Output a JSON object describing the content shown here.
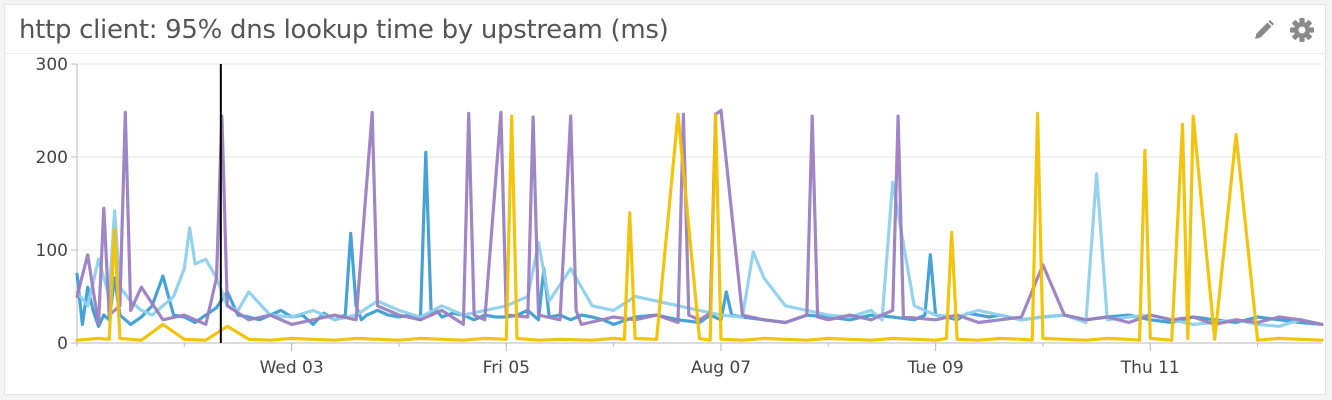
{
  "widget": {
    "title": "http client: 95% dns lookup time by upstream (ms)",
    "edit_icon": "pencil-icon",
    "settings_icon": "gear-icon"
  },
  "colors": {
    "series": [
      "#3d9ed4",
      "#8fd0ec",
      "#9b7fc1",
      "#f2c100"
    ],
    "axis": "#b9b9b9",
    "grid": "#e6e6e6",
    "cursor": "#000000",
    "text": "#444444"
  },
  "chart_data": {
    "type": "line",
    "title": "http client: 95% dns lookup time by upstream (ms)",
    "xlabel": "",
    "ylabel": "",
    "ylim": [
      0,
      300
    ],
    "yticks": [
      0,
      100,
      200,
      300
    ],
    "xlim": [
      0,
      11.6
    ],
    "xunit": "days from start of displayed window (axis shows dates)",
    "xticks": [
      {
        "x": 2.0,
        "label": "Wed 03"
      },
      {
        "x": 4.0,
        "label": "Fri 05"
      },
      {
        "x": 6.0,
        "label": "Aug 07"
      },
      {
        "x": 8.0,
        "label": "Tue 09"
      },
      {
        "x": 10.0,
        "label": "Thu 11"
      }
    ],
    "grid": true,
    "cursor_x": 1.34,
    "series": [
      {
        "color": "#3d9ed4",
        "x": [
          0.0,
          0.05,
          0.1,
          0.15,
          0.2,
          0.25,
          0.3,
          0.35,
          0.4,
          0.5,
          0.6,
          0.7,
          0.8,
          0.9,
          1.0,
          1.1,
          1.2,
          1.3,
          1.4,
          1.5,
          1.6,
          1.7,
          1.8,
          1.9,
          2.0,
          2.1,
          2.2,
          2.3,
          2.4,
          2.5,
          2.55,
          2.6,
          2.65,
          2.7,
          2.8,
          2.9,
          3.0,
          3.1,
          3.2,
          3.25,
          3.3,
          3.35,
          3.4,
          3.5,
          3.6,
          3.7,
          3.8,
          3.9,
          4.0,
          4.1,
          4.2,
          4.3,
          4.35,
          4.4,
          4.5,
          4.6,
          4.7,
          4.8,
          4.9,
          5.0,
          5.2,
          5.4,
          5.6,
          5.8,
          5.9,
          6.0,
          6.05,
          6.1,
          6.2,
          6.4,
          6.6,
          6.8,
          7.0,
          7.2,
          7.4,
          7.6,
          7.8,
          7.9,
          7.95,
          8.0,
          8.1,
          8.2,
          8.3,
          8.4,
          8.5,
          8.6,
          8.8,
          9.0,
          9.2,
          9.4,
          9.6,
          9.8,
          10.0,
          10.2,
          10.4,
          10.6,
          10.8,
          11.0,
          11.2,
          11.4,
          11.6
        ],
        "y": [
          74,
          20,
          60,
          35,
          18,
          30,
          25,
          70,
          30,
          20,
          28,
          40,
          72,
          30,
          28,
          22,
          30,
          38,
          55,
          30,
          28,
          25,
          30,
          35,
          28,
          30,
          20,
          32,
          25,
          30,
          118,
          40,
          25,
          30,
          35,
          30,
          28,
          30,
          25,
          205,
          30,
          35,
          28,
          32,
          30,
          25,
          30,
          28,
          28,
          30,
          35,
          25,
          80,
          28,
          30,
          25,
          30,
          28,
          25,
          20,
          28,
          30,
          25,
          22,
          30,
          25,
          55,
          30,
          28,
          25,
          22,
          30,
          28,
          25,
          30,
          28,
          25,
          30,
          95,
          30,
          28,
          25,
          32,
          30,
          28,
          30,
          25,
          28,
          30,
          25,
          28,
          30,
          25,
          22,
          28,
          25,
          22,
          28,
          25,
          22,
          20
        ]
      },
      {
        "color": "#8fd0ec",
        "x": [
          0.0,
          0.1,
          0.2,
          0.3,
          0.35,
          0.4,
          0.5,
          0.6,
          0.7,
          0.8,
          0.9,
          1.0,
          1.05,
          1.1,
          1.2,
          1.3,
          1.4,
          1.5,
          1.6,
          1.8,
          2.0,
          2.2,
          2.4,
          2.6,
          2.8,
          3.0,
          3.2,
          3.4,
          3.6,
          3.8,
          4.0,
          4.2,
          4.3,
          4.4,
          4.6,
          4.8,
          5.0,
          5.2,
          5.4,
          5.6,
          5.8,
          6.0,
          6.2,
          6.3,
          6.4,
          6.6,
          6.8,
          7.0,
          7.2,
          7.4,
          7.5,
          7.6,
          7.8,
          8.0,
          8.2,
          8.4,
          8.6,
          8.8,
          9.0,
          9.2,
          9.4,
          9.5,
          9.6,
          9.8,
          10.0,
          10.2,
          10.4,
          10.6,
          10.8,
          11.0,
          11.2,
          11.4,
          11.6
        ],
        "y": [
          55,
          40,
          90,
          50,
          142,
          60,
          45,
          35,
          30,
          40,
          50,
          80,
          124,
          85,
          90,
          70,
          40,
          35,
          55,
          30,
          28,
          35,
          25,
          30,
          45,
          35,
          28,
          40,
          30,
          35,
          40,
          50,
          108,
          45,
          80,
          40,
          35,
          50,
          45,
          40,
          35,
          30,
          28,
          98,
          70,
          40,
          35,
          30,
          28,
          35,
          25,
          173,
          40,
          30,
          28,
          35,
          30,
          25,
          28,
          30,
          22,
          182,
          25,
          28,
          30,
          25,
          20,
          22,
          25,
          20,
          18,
          25,
          20
        ]
      },
      {
        "color": "#9b7fc1",
        "x": [
          0.0,
          0.1,
          0.2,
          0.25,
          0.3,
          0.4,
          0.45,
          0.5,
          0.6,
          0.8,
          1.0,
          1.2,
          1.3,
          1.35,
          1.4,
          1.6,
          1.8,
          2.0,
          2.2,
          2.4,
          2.6,
          2.75,
          2.8,
          3.0,
          3.2,
          3.4,
          3.6,
          3.65,
          3.7,
          3.8,
          3.95,
          4.0,
          4.2,
          4.25,
          4.3,
          4.5,
          4.6,
          4.65,
          4.7,
          5.0,
          5.2,
          5.4,
          5.6,
          5.65,
          5.7,
          5.8,
          5.9,
          5.95,
          6.0,
          6.2,
          6.4,
          6.6,
          6.8,
          6.85,
          6.9,
          7.0,
          7.2,
          7.4,
          7.6,
          7.65,
          7.7,
          8.0,
          8.2,
          8.4,
          8.6,
          8.8,
          9.0,
          9.2,
          9.4,
          9.6,
          9.8,
          10.0,
          10.2,
          10.4,
          10.6,
          10.8,
          11.0,
          11.2,
          11.4,
          11.6
        ],
        "y": [
          50,
          95,
          20,
          145,
          30,
          40,
          248,
          35,
          60,
          25,
          30,
          20,
          70,
          244,
          40,
          25,
          30,
          20,
          25,
          30,
          25,
          248,
          40,
          30,
          25,
          35,
          20,
          247,
          30,
          25,
          248,
          30,
          28,
          243,
          30,
          25,
          244,
          35,
          20,
          28,
          25,
          30,
          22,
          246,
          30,
          25,
          32,
          246,
          250,
          30,
          25,
          22,
          30,
          244,
          28,
          25,
          30,
          25,
          35,
          244,
          28,
          25,
          30,
          22,
          25,
          28,
          84,
          30,
          25,
          28,
          22,
          30,
          25,
          28,
          20,
          25,
          22,
          28,
          25,
          20
        ]
      },
      {
        "color": "#f2c100",
        "x": [
          0.0,
          0.2,
          0.3,
          0.35,
          0.4,
          0.6,
          0.8,
          1.0,
          1.2,
          1.4,
          1.6,
          1.8,
          2.0,
          2.2,
          2.4,
          2.6,
          2.8,
          3.0,
          3.2,
          3.4,
          3.6,
          3.8,
          4.0,
          4.05,
          4.1,
          4.3,
          4.5,
          4.8,
          5.0,
          5.1,
          5.15,
          5.2,
          5.4,
          5.6,
          5.8,
          5.9,
          5.95,
          6.0,
          6.2,
          6.4,
          6.6,
          6.8,
          7.0,
          7.2,
          7.4,
          7.6,
          7.8,
          8.0,
          8.1,
          8.15,
          8.2,
          8.4,
          8.6,
          8.8,
          8.9,
          8.95,
          9.0,
          9.2,
          9.4,
          9.6,
          9.8,
          9.9,
          9.95,
          10.0,
          10.2,
          10.3,
          10.35,
          10.4,
          10.6,
          10.8,
          11.0,
          11.2,
          11.4,
          11.6
        ],
        "y": [
          3,
          5,
          4,
          122,
          5,
          3,
          20,
          4,
          3,
          18,
          4,
          3,
          5,
          4,
          3,
          5,
          4,
          3,
          5,
          4,
          3,
          5,
          4,
          244,
          5,
          3,
          4,
          3,
          5,
          4,
          140,
          5,
          4,
          246,
          5,
          3,
          245,
          4,
          3,
          5,
          4,
          3,
          5,
          4,
          3,
          5,
          4,
          3,
          5,
          119,
          4,
          3,
          5,
          4,
          3,
          247,
          5,
          4,
          3,
          5,
          4,
          3,
          207,
          5,
          3,
          235,
          5,
          244,
          4,
          224,
          3,
          5,
          4,
          3
        ]
      }
    ]
  }
}
